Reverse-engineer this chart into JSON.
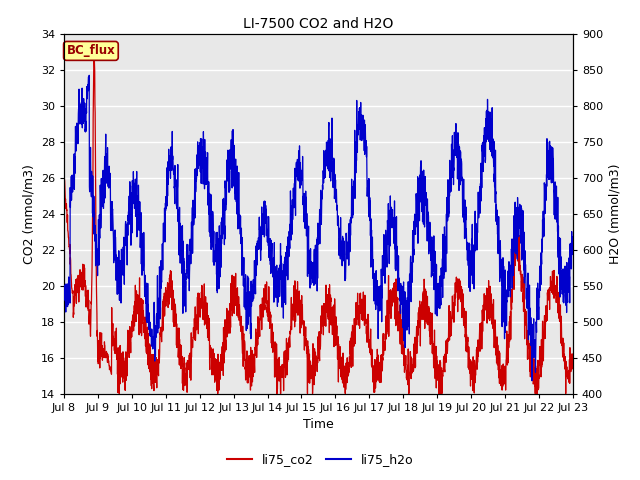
{
  "title": "LI-7500 CO2 and H2O",
  "xlabel": "Time",
  "ylabel_left": "CO2 (mmol/m3)",
  "ylabel_right": "H2O (mmol/m3)",
  "ylim_left": [
    14,
    34
  ],
  "ylim_right": [
    400,
    900
  ],
  "yticks_left": [
    14,
    16,
    18,
    20,
    22,
    24,
    26,
    28,
    30,
    32,
    34
  ],
  "yticks_right": [
    400,
    450,
    500,
    550,
    600,
    650,
    700,
    750,
    800,
    850,
    900
  ],
  "xtick_labels": [
    "Jul 8",
    "Jul 9",
    "Jul 10",
    "Jul 11",
    "Jul 12",
    "Jul 13",
    "Jul 14",
    "Jul 15",
    "Jul 16",
    "Jul 17",
    "Jul 18",
    "Jul 19",
    "Jul 20",
    "Jul 21",
    "Jul 22",
    "Jul 23"
  ],
  "legend_labels": [
    "li75_co2",
    "li75_h2o"
  ],
  "co2_color": "#cc0000",
  "h2o_color": "#0000cc",
  "annotation_text": "BC_flux",
  "annotation_color": "#990000",
  "annotation_bg": "#ffff99",
  "background_color": "#e8e8e8",
  "title_fontsize": 10,
  "axis_label_fontsize": 9,
  "tick_fontsize": 8,
  "legend_fontsize": 9,
  "grid_color": "#ffffff",
  "line_width": 0.9
}
